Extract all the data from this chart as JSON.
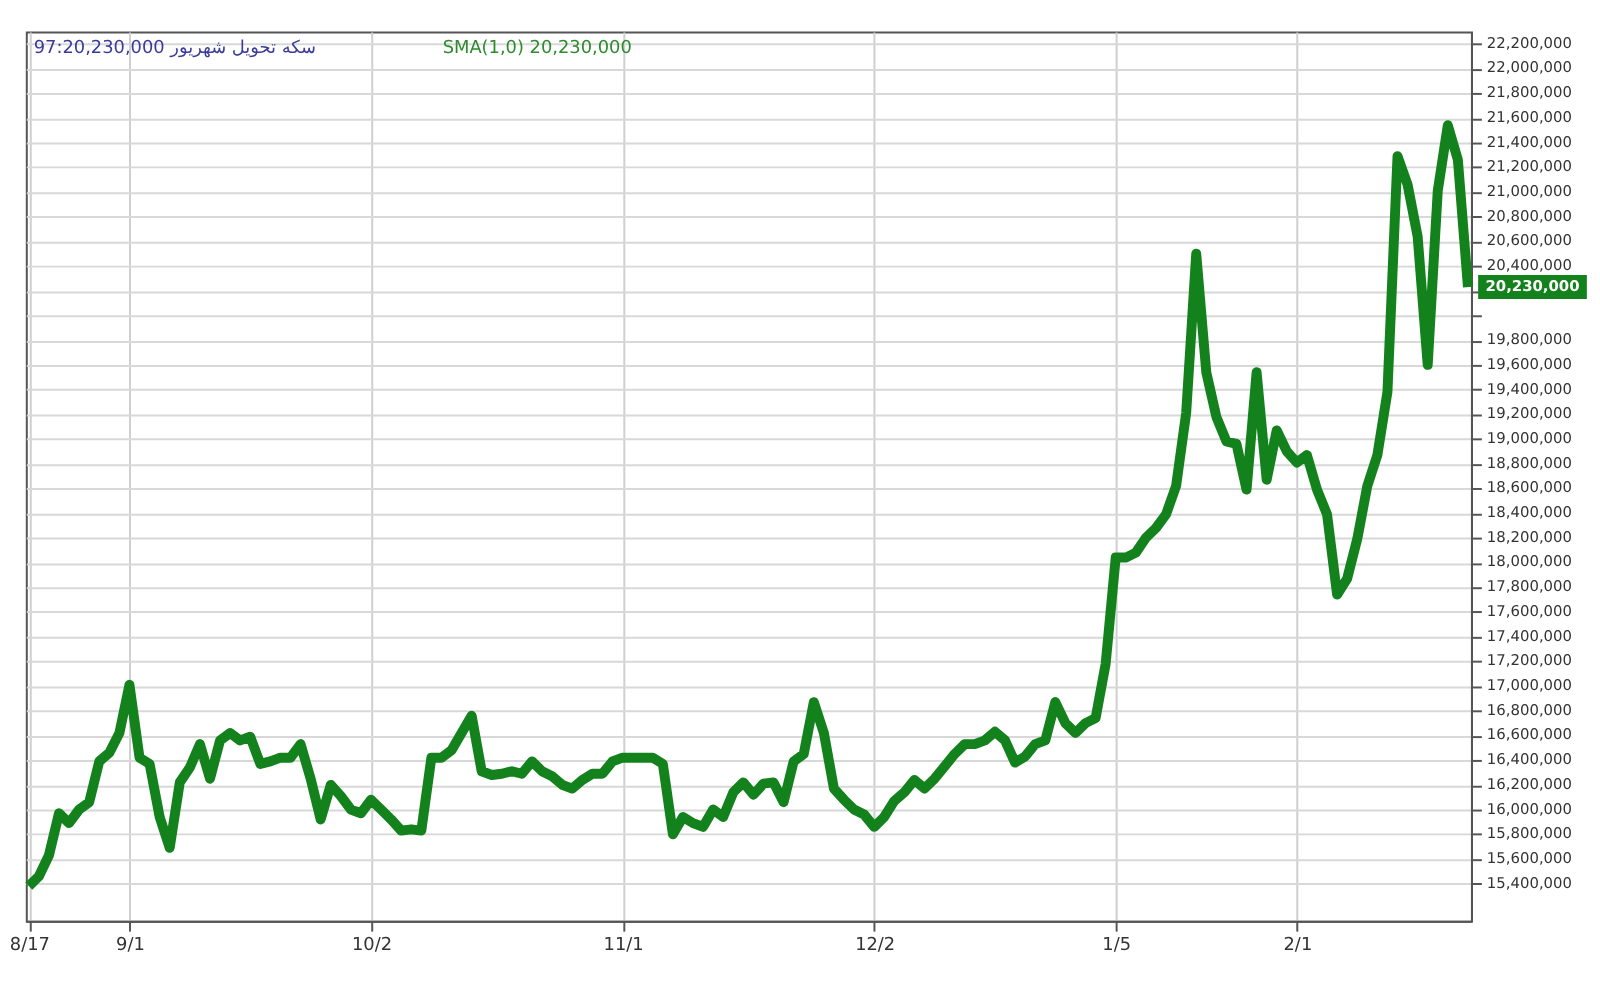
{
  "chart_data": {
    "type": "line",
    "categories": [
      "8/17",
      null,
      null,
      null,
      null,
      null,
      null,
      null,
      null,
      null,
      "9/1",
      null,
      null,
      null,
      null,
      null,
      null,
      null,
      null,
      null,
      null,
      null,
      null,
      null,
      null,
      null,
      null,
      null,
      null,
      null,
      null,
      null,
      null,
      null,
      "10/2",
      null,
      null,
      null,
      null,
      null,
      null,
      null,
      null,
      null,
      null,
      null,
      null,
      null,
      null,
      null,
      null,
      null,
      null,
      null,
      null,
      null,
      null,
      null,
      null,
      "11/1",
      null,
      null,
      null,
      null,
      null,
      null,
      null,
      null,
      null,
      null,
      null,
      null,
      null,
      null,
      null,
      null,
      null,
      null,
      null,
      null,
      null,
      null,
      null,
      null,
      "12/2",
      null,
      null,
      null,
      null,
      null,
      null,
      null,
      null,
      null,
      null,
      null,
      null,
      null,
      null,
      null,
      null,
      null,
      null,
      null,
      null,
      null,
      null,
      null,
      "1/5",
      null,
      null,
      null,
      null,
      null,
      null,
      null,
      null,
      null,
      null,
      null,
      null,
      null,
      null,
      null,
      null,
      null,
      "2/1",
      null,
      null,
      null,
      null,
      null,
      null,
      null,
      null,
      null,
      null,
      null,
      null,
      null,
      null,
      null,
      null,
      null
    ],
    "series": [
      {
        "color": "#14821c",
        "values": [
          15380000,
          15460000,
          15630000,
          15970000,
          15890000,
          16000000,
          16060000,
          16390000,
          16460000,
          16620000,
          17010000,
          16420000,
          16370000,
          15940000,
          15690000,
          16220000,
          16340000,
          16530000,
          16250000,
          16560000,
          16620000,
          16560000,
          16590000,
          16370000,
          16390000,
          16420000,
          16420000,
          16530000,
          16250000,
          15920000,
          16200000,
          16110000,
          16000000,
          15970000,
          16080000,
          16000000,
          15920000,
          15830000,
          15840000,
          15830000,
          16420000,
          16420000,
          16480000,
          16620000,
          16760000,
          16310000,
          16280000,
          16290000,
          16310000,
          16290000,
          16390000,
          16310000,
          16270000,
          16200000,
          16170000,
          16240000,
          16290000,
          16290000,
          16390000,
          16420000,
          16420000,
          16420000,
          16420000,
          16370000,
          15800000,
          15940000,
          15890000,
          15860000,
          16000000,
          15940000,
          16140000,
          16220000,
          16120000,
          16210000,
          16220000,
          16060000,
          16390000,
          16450000,
          16870000,
          16620000,
          16170000,
          16080000,
          16000000,
          15960000,
          15860000,
          15940000,
          16070000,
          16140000,
          16240000,
          16170000,
          16250000,
          16350000,
          16450000,
          16530000,
          16530000,
          16560000,
          16630000,
          16560000,
          16380000,
          16430000,
          16530000,
          16560000,
          16870000,
          16700000,
          16620000,
          16700000,
          16740000,
          17180000,
          18040000,
          18040000,
          18080000,
          18200000,
          18280000,
          18390000,
          18620000,
          19210000,
          20500000,
          19540000,
          19180000,
          18980000,
          18960000,
          18590000,
          19540000,
          18670000,
          19070000,
          18900000,
          18810000,
          18870000,
          18590000,
          18390000,
          17740000,
          17870000,
          18190000,
          18620000,
          18870000,
          19380000,
          21290000,
          21060000,
          20640000,
          19600000,
          21010000,
          21540000,
          21260000,
          20230000
        ]
      }
    ],
    "ylim": [
      15100000,
      22300000
    ],
    "yticks": [
      {
        "value": 15400000,
        "label": "15,400,000"
      },
      {
        "value": 15600000,
        "label": "15,600,000"
      },
      {
        "value": 15800000,
        "label": "15,800,000"
      },
      {
        "value": 16000000,
        "label": "16,000,000"
      },
      {
        "value": 16200000,
        "label": "16,200,000"
      },
      {
        "value": 16400000,
        "label": "16,400,000"
      },
      {
        "value": 16600000,
        "label": "16,600,000"
      },
      {
        "value": 16800000,
        "label": "16,800,000"
      },
      {
        "value": 17000000,
        "label": "17,000,000"
      },
      {
        "value": 17200000,
        "label": "17,200,000"
      },
      {
        "value": 17400000,
        "label": "17,400,000"
      },
      {
        "value": 17600000,
        "label": "17,600,000"
      },
      {
        "value": 17800000,
        "label": "17,800,000"
      },
      {
        "value": 18000000,
        "label": "18,000,000"
      },
      {
        "value": 18200000,
        "label": "18,200,000"
      },
      {
        "value": 18400000,
        "label": "18,400,000"
      },
      {
        "value": 18600000,
        "label": "18,600,000"
      },
      {
        "value": 18800000,
        "label": "18,800,000"
      },
      {
        "value": 19000000,
        "label": "19,000,000"
      },
      {
        "value": 19200000,
        "label": "19,200,000"
      },
      {
        "value": 19400000,
        "label": "19,400,000"
      },
      {
        "value": 19600000,
        "label": "19,600,000"
      },
      {
        "value": 19800000,
        "label": "19,800,000"
      },
      {
        "value": 20000000,
        "label": null
      },
      {
        "value": 20200000,
        "label": null
      },
      {
        "value": 20400000,
        "label": "20,400,000"
      },
      {
        "value": 20600000,
        "label": "20,600,000"
      },
      {
        "value": 20800000,
        "label": "20,800,000"
      },
      {
        "value": 21000000,
        "label": "21,000,000"
      },
      {
        "value": 21200000,
        "label": "21,200,000"
      },
      {
        "value": 21400000,
        "label": "21,400,000"
      },
      {
        "value": 21600000,
        "label": "21,600,000"
      },
      {
        "value": 21800000,
        "label": "21,800,000"
      },
      {
        "value": 22000000,
        "label": "22,000,000"
      },
      {
        "value": 22200000,
        "label": "22,200,000"
      }
    ],
    "grid": true,
    "marker": "none",
    "line_style": "solid",
    "annotations": [
      "سکه تحویل شهریور 97:20,230,000",
      "SMA(1,0)  20,230,000",
      "20,230,000"
    ]
  }
}
